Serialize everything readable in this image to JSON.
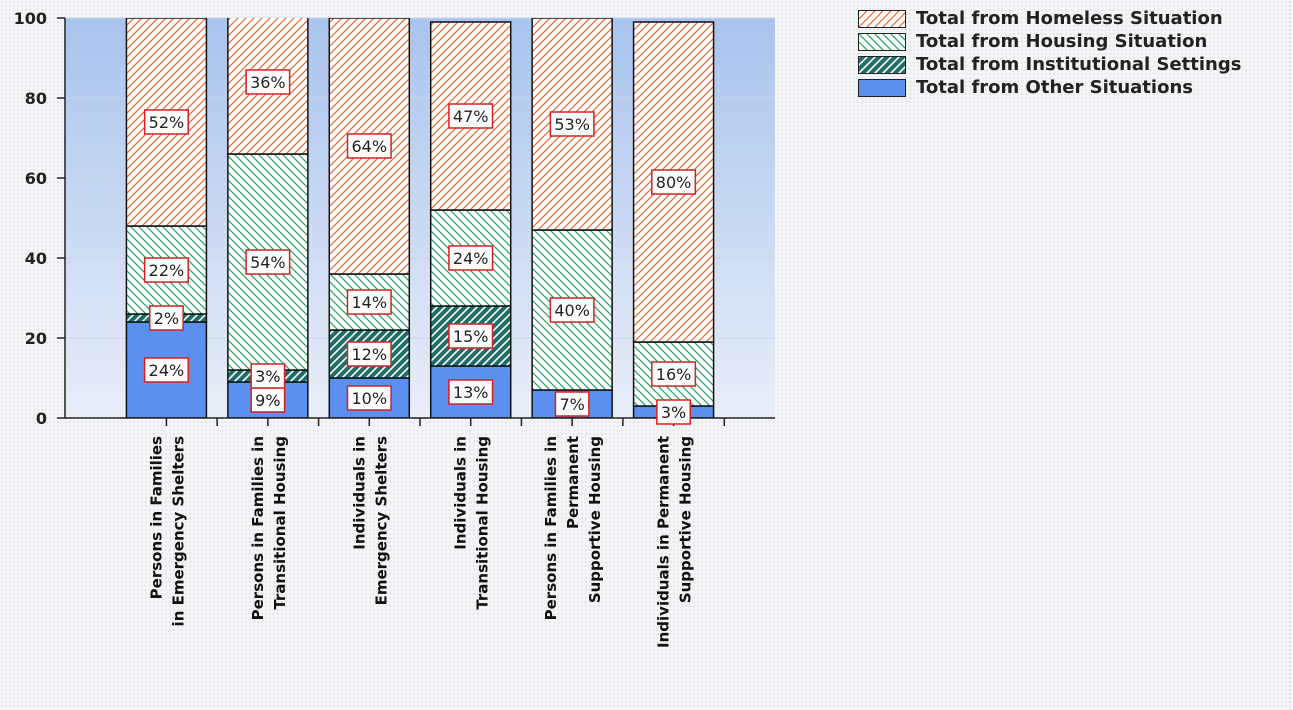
{
  "chart_data": {
    "type": "stacked-bar",
    "categories": [
      [
        "Persons in Families",
        "in Emergency Shelters"
      ],
      [
        "Persons in Families in",
        "Transitional Housing"
      ],
      [
        "Individuals in",
        "Emergency Shelters"
      ],
      [
        "Individuals in",
        "Transitional Housing"
      ],
      [
        "Persons in Families in",
        "Permanent",
        "Supportive Housing"
      ],
      [
        "Individuals in Permanent",
        "Supportive Housing"
      ]
    ],
    "series": [
      {
        "name": "Total from Homeless Situation",
        "color": "#e8703a",
        "hatch": "/",
        "values": [
          52,
          36,
          64,
          47,
          53,
          80
        ],
        "value_labels": [
          "52%",
          "36%",
          "64%",
          "47%",
          "53%",
          "80%"
        ]
      },
      {
        "name": "Total from Housing Situation",
        "color": "#2aa86a",
        "hatch": "\\",
        "values": [
          22,
          54,
          14,
          24,
          40,
          16
        ],
        "value_labels": [
          "22%",
          "54%",
          "14%",
          "24%",
          "40%",
          "16%"
        ]
      },
      {
        "name": "Total from Institutional Settings",
        "color": "#1f6e68",
        "hatch": "dark",
        "values": [
          2,
          3,
          12,
          15,
          null,
          null
        ],
        "value_labels": [
          "2%",
          "3%",
          "12%",
          "15%",
          null,
          null
        ]
      },
      {
        "name": "Total from Other Situations",
        "color": "#5b8ff0",
        "hatch": "solid",
        "values": [
          24,
          9,
          10,
          13,
          7,
          3
        ],
        "value_labels": [
          "24%",
          "9%",
          "10%",
          "13%",
          "7%",
          "3%"
        ]
      }
    ],
    "ylim": [
      0,
      100
    ],
    "yticks": [
      0,
      20,
      40,
      60,
      80,
      100
    ],
    "grid": true,
    "legend": "top-right"
  }
}
